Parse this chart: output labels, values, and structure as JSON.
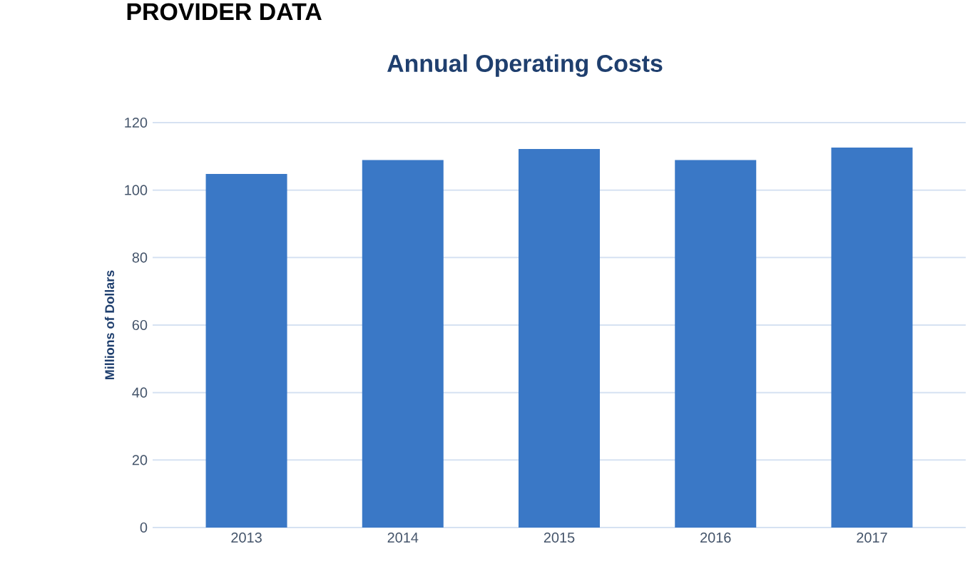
{
  "chart_data": {
    "type": "bar",
    "title": "Annual Operating Costs",
    "ylabel": "Millions of Dollars",
    "annotations": [
      "PROVIDER DATA"
    ],
    "categories": [
      "2013",
      "2014",
      "2015",
      "2016",
      "2017"
    ],
    "values": [
      104.8,
      108.9,
      112.2,
      108.9,
      112.6
    ],
    "color": "#3a78c6",
    "ylim": [
      0,
      120
    ],
    "yticks": [
      0,
      20,
      40,
      60,
      80,
      100,
      120
    ],
    "grid": "y"
  }
}
